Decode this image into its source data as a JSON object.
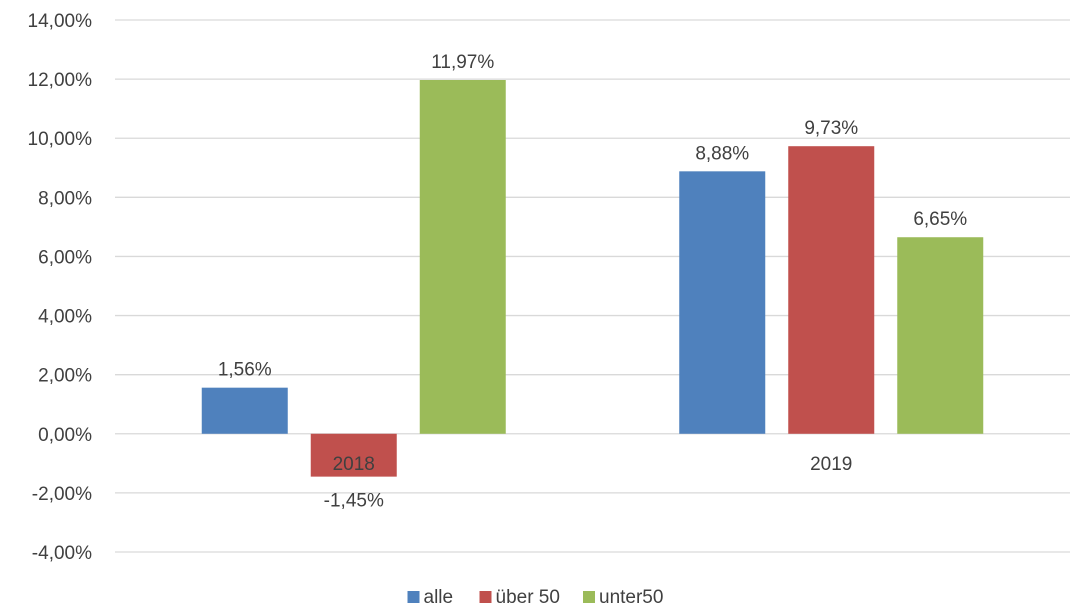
{
  "chart_data": {
    "type": "bar",
    "title": "",
    "xlabel": "",
    "ylabel": "",
    "categories": [
      "2018",
      "2019"
    ],
    "series": [
      {
        "name": "alle",
        "color": "#4f81bd",
        "values": [
          1.56,
          8.88
        ],
        "labels": [
          "1,56%",
          "8,88%"
        ]
      },
      {
        "name": "über 50",
        "color": "#c0504d",
        "values": [
          -1.45,
          9.73
        ],
        "labels": [
          "-1,45%",
          "9,73%"
        ]
      },
      {
        "name": "unter50",
        "color": "#9bbb59",
        "values": [
          11.97,
          6.65
        ],
        "labels": [
          "11,97%",
          "6,65%"
        ]
      }
    ],
    "ylim": [
      -4,
      14
    ],
    "yticks": [
      14,
      12,
      10,
      8,
      6,
      4,
      2,
      0,
      -2,
      -4
    ],
    "ytick_labels": [
      "14,00%",
      "12,00%",
      "10,00%",
      "8,00%",
      "6,00%",
      "4,00%",
      "2,00%",
      "0,00%",
      "-2,00%",
      "-4,00%"
    ],
    "grid": true,
    "legend": "bottom"
  }
}
